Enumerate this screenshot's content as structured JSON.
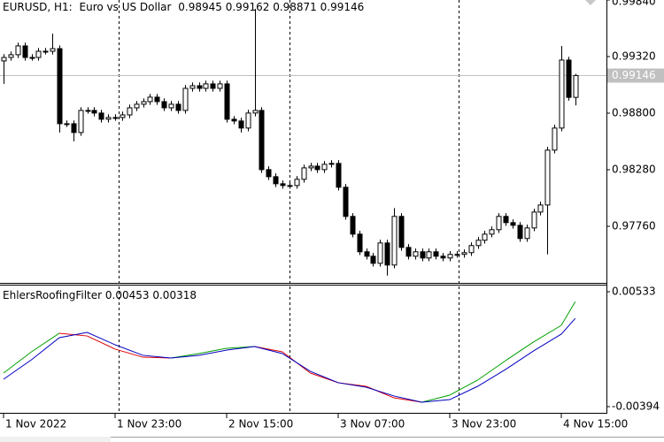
{
  "chart_data": [
    {
      "type": "candlestick",
      "symbol": "EURUSD, H1:",
      "description": "Euro vs US Dollar",
      "open": [
        0.9928,
        0.99312,
        0.99337,
        0.99418,
        0.99312,
        0.99312,
        0.99369,
        0.99369,
        0.99393,
        0.98703,
        0.98703,
        0.98622,
        0.98825,
        0.98825,
        0.98801,
        0.98744,
        0.9876,
        0.9876,
        0.98784,
        0.98849,
        0.98882,
        0.98906,
        0.98947,
        0.98906,
        0.98849,
        0.98882,
        0.98825,
        0.99028,
        0.99052,
        0.99028,
        0.99069,
        0.99028,
        0.99069,
        0.98744,
        0.98728,
        0.98663,
        0.98801,
        0.98825,
        0.98281,
        0.98216,
        0.98151,
        0.98135,
        0.98135,
        0.98192,
        0.98297,
        0.98313,
        0.98281,
        0.9833,
        0.98338,
        0.98119,
        0.97851,
        0.97688,
        0.97526,
        0.97485,
        0.9742,
        0.97607,
        0.97404,
        0.97851,
        0.97566,
        0.97485,
        0.97526,
        0.97469,
        0.97526,
        0.97485,
        0.97469,
        0.97502,
        0.97502,
        0.97518,
        0.97583,
        0.97632,
        0.97688,
        0.97729,
        0.97851,
        0.97794,
        0.97769,
        0.97648,
        0.97745,
        0.97891,
        0.97956,
        0.9846,
        0.98663,
        0.99288,
        0.98945
      ],
      "high": [
        0.99342,
        0.99367,
        0.99448,
        0.99448,
        0.99342,
        0.99399,
        0.99399,
        0.99531,
        0.99423,
        0.98733,
        0.98733,
        0.98855,
        0.98855,
        0.98855,
        0.98831,
        0.9879,
        0.9879,
        0.98814,
        0.98879,
        0.98912,
        0.98936,
        0.98977,
        0.98977,
        0.98936,
        0.98912,
        0.98912,
        0.99058,
        0.99082,
        0.99082,
        0.99099,
        0.99099,
        0.99099,
        0.99099,
        0.98774,
        0.98758,
        0.98831,
        0.99759,
        0.98855,
        0.98311,
        0.98246,
        0.98181,
        0.98165,
        0.98222,
        0.98327,
        0.98343,
        0.98343,
        0.9836,
        0.98368,
        0.98368,
        0.98149,
        0.97881,
        0.97718,
        0.97556,
        0.97515,
        0.97637,
        0.97637,
        0.97928,
        0.97881,
        0.97596,
        0.97556,
        0.97556,
        0.97556,
        0.97556,
        0.97515,
        0.97532,
        0.97532,
        0.97548,
        0.97613,
        0.97662,
        0.97718,
        0.97759,
        0.97881,
        0.97881,
        0.97824,
        0.97799,
        0.97775,
        0.97921,
        0.97986,
        0.9849,
        0.98693,
        0.99418,
        0.99318,
        0.99162
      ],
      "low": [
        0.99069,
        0.99282,
        0.99307,
        0.99282,
        0.99282,
        0.99282,
        0.99339,
        0.99339,
        0.98622,
        0.98673,
        0.98541,
        0.98592,
        0.98795,
        0.98771,
        0.98714,
        0.98714,
        0.9873,
        0.9873,
        0.98754,
        0.98819,
        0.98852,
        0.98876,
        0.98876,
        0.98819,
        0.98819,
        0.98795,
        0.98795,
        0.98998,
        0.98998,
        0.98998,
        0.98998,
        0.98998,
        0.98714,
        0.98698,
        0.98622,
        0.98633,
        0.98771,
        0.98251,
        0.98186,
        0.98121,
        0.98105,
        0.98105,
        0.98105,
        0.98162,
        0.98267,
        0.98251,
        0.98251,
        0.983,
        0.98089,
        0.97821,
        0.97658,
        0.97496,
        0.97455,
        0.9739,
        0.9739,
        0.97307,
        0.97374,
        0.97536,
        0.97455,
        0.97455,
        0.97439,
        0.97439,
        0.97455,
        0.97439,
        0.97439,
        0.97472,
        0.97472,
        0.97488,
        0.97553,
        0.97602,
        0.97658,
        0.97699,
        0.97764,
        0.97739,
        0.97618,
        0.97618,
        0.97715,
        0.97861,
        0.97502,
        0.9843,
        0.98633,
        0.98915,
        0.98871
      ],
      "close": [
        0.99312,
        0.99337,
        0.99418,
        0.99312,
        0.99312,
        0.99369,
        0.99369,
        0.99393,
        0.98703,
        0.98703,
        0.98622,
        0.98825,
        0.98825,
        0.98801,
        0.98744,
        0.9876,
        0.9876,
        0.98784,
        0.98849,
        0.98882,
        0.98906,
        0.98947,
        0.98906,
        0.98849,
        0.98882,
        0.98825,
        0.99028,
        0.99052,
        0.99028,
        0.99069,
        0.99028,
        0.99069,
        0.98744,
        0.98728,
        0.98663,
        0.98801,
        0.98825,
        0.98281,
        0.98216,
        0.98151,
        0.98135,
        0.98135,
        0.98192,
        0.98297,
        0.98313,
        0.98281,
        0.9833,
        0.98338,
        0.98119,
        0.97851,
        0.97688,
        0.97526,
        0.97485,
        0.9742,
        0.97607,
        0.97404,
        0.97851,
        0.97566,
        0.97485,
        0.97526,
        0.97469,
        0.97526,
        0.97485,
        0.97469,
        0.97502,
        0.97502,
        0.97518,
        0.97583,
        0.97632,
        0.97688,
        0.97729,
        0.97851,
        0.97794,
        0.97769,
        0.97648,
        0.97745,
        0.97891,
        0.97956,
        0.9846,
        0.98663,
        0.99288,
        0.98945,
        0.99146
      ],
      "ylim": [
        0.9724,
        0.9984
      ],
      "yticks": [
        {
          "value": 0.9984,
          "label": "0.99840"
        },
        {
          "value": 0.9932,
          "label": "0.99320"
        },
        {
          "value": 0.988,
          "label": "0.98800"
        },
        {
          "value": 0.9828,
          "label": "0.98280"
        },
        {
          "value": 0.9776,
          "label": "0.97760"
        }
      ],
      "xticks": [
        {
          "value": 0,
          "label": "1 Nov 2022"
        },
        {
          "value": 16,
          "label": "1 Nov 23:00"
        },
        {
          "value": 32,
          "label": "2 Nov 15:00"
        },
        {
          "value": 48,
          "label": "3 Nov 07:00"
        },
        {
          "value": 64,
          "label": "3 Nov 23:00"
        },
        {
          "value": 80,
          "label": "4 Nov 15:00"
        }
      ],
      "up_color": "#ffffff",
      "down_color": "#000000",
      "price_line_color": "#c0c0c0"
    },
    {
      "type": "line",
      "title": "EhlersRoofingFilter",
      "x": [
        0,
        4,
        8,
        12,
        16,
        20,
        24,
        28,
        32,
        36,
        40,
        44,
        48,
        52,
        56,
        60,
        64,
        68,
        72,
        76,
        80,
        82
      ],
      "series": [
        {
          "color": "#00a000",
          "down_color": "#e00000",
          "values": [
            -0.00123,
            0.00048,
            0.00198,
            0.00176,
            0.0007,
            5e-05,
            -2e-05,
            0.00034,
            0.00077,
            0.00091,
            0.00048,
            -0.00123,
            -0.00201,
            -0.0023,
            -0.00323,
            -0.00358,
            -0.00301,
            -0.0018,
            -0.00023,
            0.00127,
            0.00262,
            0.00453
          ]
        },
        {
          "color": "#0000c0",
          "values": [
            -0.00173,
            -0.00016,
            0.00162,
            0.00205,
            0.00105,
            0.0002,
            -2e-05,
            0.0002,
            0.00062,
            0.00091,
            0.00034,
            -0.00109,
            -0.00201,
            -0.00237,
            -0.00308,
            -0.00358,
            -0.00337,
            -0.0023,
            -0.00094,
            0.00055,
            0.00191,
            0.00318
          ]
        }
      ],
      "ylim": [
        -0.00451,
        0.0059
      ],
      "yticks": [
        0.00533,
        -0.00394
      ]
    }
  ]
}
